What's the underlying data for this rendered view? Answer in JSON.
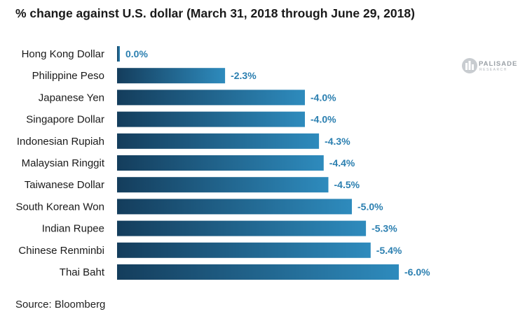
{
  "chart_data": {
    "type": "bar",
    "orientation": "horizontal",
    "title": "% change against U.S. dollar (March 31, 2018 through June 29, 2018)",
    "source": "Source: Bloomberg",
    "categories": [
      "Hong Kong Dollar",
      "Philippine Peso",
      "Japanese Yen",
      "Singapore Dollar",
      "Indonesian Rupiah",
      "Malaysian Ringgit",
      "Taiwanese Dollar",
      "South Korean Won",
      "Indian Rupee",
      "Chinese Renminbi",
      "Thai Baht"
    ],
    "values": [
      0.0,
      -2.3,
      -4.0,
      -4.0,
      -4.3,
      -4.4,
      -4.5,
      -5.0,
      -5.3,
      -5.4,
      -6.0
    ],
    "labels": [
      "0.0%",
      "-2.3%",
      "-4.0%",
      "-4.0%",
      "-4.3%",
      "-4.4%",
      "-4.5%",
      "-5.0%",
      "-5.3%",
      "-5.4%",
      "-6.0%"
    ],
    "xlim": [
      0,
      -6.0
    ],
    "grid": false,
    "legend": "none",
    "colors": {
      "bar_start": "#143d5c",
      "bar_end": "#2e8bbd",
      "value_label": "#2b7fb0",
      "category_label": "#1a1a1a"
    }
  },
  "logo": {
    "name": "PALISADE",
    "sub": "RESEARCH",
    "icon": "palisade-pillars-icon"
  }
}
